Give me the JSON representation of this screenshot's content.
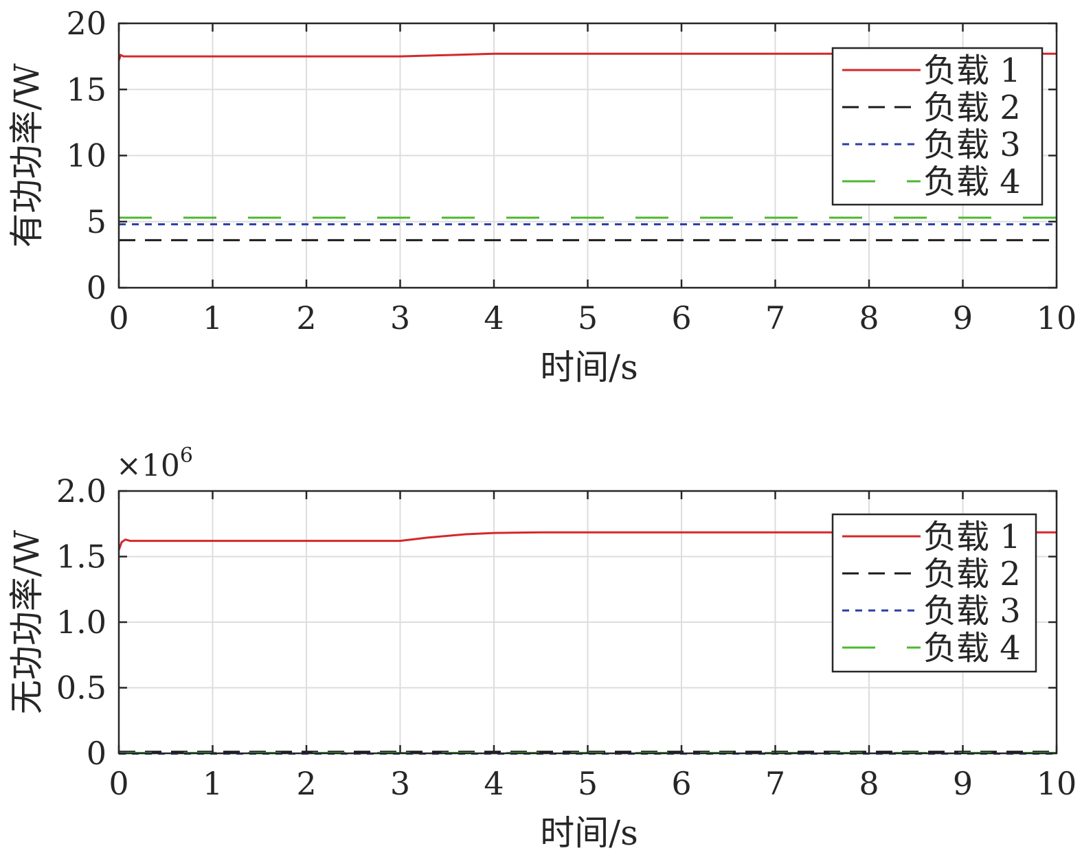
{
  "chart_data": [
    {
      "type": "line",
      "xlabel": "时间/s",
      "ylabel": "有功功率/W",
      "xlim": [
        0,
        10
      ],
      "ylim": [
        0,
        20
      ],
      "xticks": [
        0,
        1,
        2,
        3,
        4,
        5,
        6,
        7,
        8,
        9,
        10
      ],
      "yticks": [
        0,
        5,
        10,
        15,
        20
      ],
      "xtick_labels": [
        "0",
        "1",
        "2",
        "3",
        "4",
        "5",
        "6",
        "7",
        "8",
        "9",
        "10"
      ],
      "ytick_labels": [
        "0",
        "5",
        "10",
        "15",
        "20"
      ],
      "grid": true,
      "legend_position": "top-right",
      "series": [
        {
          "name": "负载 1",
          "color": "#d62728",
          "dash": "solid",
          "x": [
            0,
            0.02,
            0.05,
            3.0,
            3.5,
            4.0,
            10
          ],
          "y": [
            17.2,
            17.6,
            17.5,
            17.5,
            17.6,
            17.7,
            17.7
          ]
        },
        {
          "name": "负载 2",
          "color": "#1a1a1a",
          "dash": "dashed",
          "x": [
            0,
            10
          ],
          "y": [
            3.6,
            3.6
          ]
        },
        {
          "name": "负载 3",
          "color": "#2b3da6",
          "dash": "dotted",
          "x": [
            0,
            10
          ],
          "y": [
            4.8,
            4.8
          ]
        },
        {
          "name": "负载 4",
          "color": "#4cb82e",
          "dash": "longdash",
          "x": [
            0,
            10
          ],
          "y": [
            5.3,
            5.3
          ]
        }
      ]
    },
    {
      "type": "line",
      "xlabel": "时间/s",
      "ylabel": "无功功率/W",
      "y_exponent": "×10",
      "y_exponent_power": "6",
      "xlim": [
        0,
        10
      ],
      "ylim": [
        0,
        2.0
      ],
      "xticks": [
        0,
        1,
        2,
        3,
        4,
        5,
        6,
        7,
        8,
        9,
        10
      ],
      "yticks": [
        0,
        0.5,
        1.0,
        1.5,
        2.0
      ],
      "xtick_labels": [
        "0",
        "1",
        "2",
        "3",
        "4",
        "5",
        "6",
        "7",
        "8",
        "9",
        "10"
      ],
      "ytick_labels": [
        "0",
        "0.5",
        "1.0",
        "1.5",
        "2.0"
      ],
      "grid": true,
      "legend_position": "top-right",
      "series": [
        {
          "name": "负载 1",
          "color": "#d62728",
          "dash": "solid",
          "x": [
            0,
            0.03,
            0.07,
            0.12,
            3.0,
            3.3,
            3.7,
            4.0,
            4.5,
            10
          ],
          "y": [
            1.55,
            1.61,
            1.63,
            1.62,
            1.62,
            1.645,
            1.67,
            1.68,
            1.685,
            1.685
          ]
        },
        {
          "name": "负载 2",
          "color": "#1a1a1a",
          "dash": "dashed",
          "x": [
            0,
            10
          ],
          "y": [
            0.012,
            0.012
          ]
        },
        {
          "name": "负载 3",
          "color": "#2b3da6",
          "dash": "dotted",
          "x": [
            0,
            10
          ],
          "y": [
            -0.003,
            -0.003
          ]
        },
        {
          "name": "负载 4",
          "color": "#4cb82e",
          "dash": "longdash",
          "x": [
            0,
            10
          ],
          "y": [
            0.003,
            0.003
          ]
        }
      ]
    }
  ]
}
